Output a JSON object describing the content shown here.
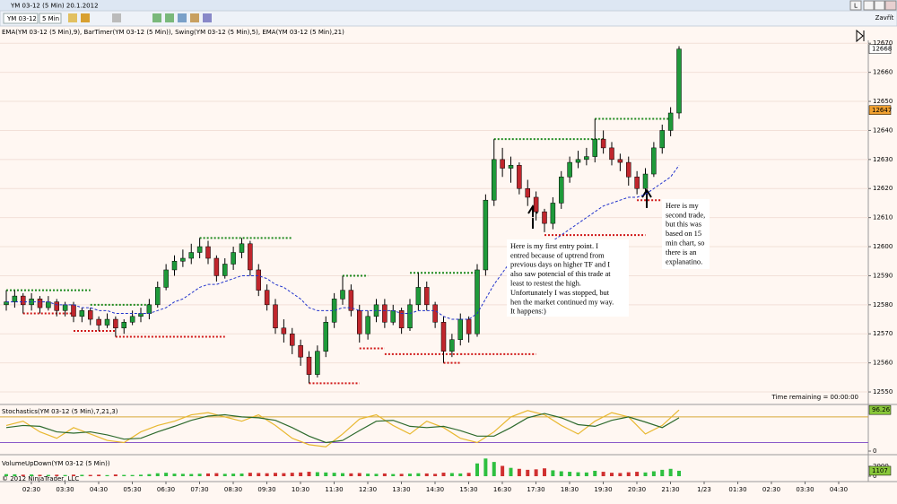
{
  "window": {
    "title": "YM 03-12 (5 Min)  20.1.2012",
    "button_l": "L",
    "close_label": "Zavřít"
  },
  "toolbar": {
    "instrument": "YM 03-12",
    "interval": "5 Min"
  },
  "indicator_legend": "EMA(YM 03-12 (5 Min),9), BarTimer(YM 03-12 (5 Min)), Swing(YM 03-12 (5 Min),5), EMA(YM 03-12 (5 Min),21)",
  "time_remaining": "Time remaining = 00:00:00",
  "copyright": "© 2012 NinjaTrader, LLC",
  "x_axis_labels": [
    "02:30",
    "03:30",
    "04:30",
    "05:30",
    "06:30",
    "07:30",
    "08:30",
    "09:30",
    "10:30",
    "11:30",
    "12:30",
    "13:30",
    "14:30",
    "15:30",
    "16:30",
    "17:30",
    "18:30",
    "19:30",
    "20:30",
    "21:30",
    "1/23",
    "01:30",
    "02:30",
    "03:30",
    "04:30"
  ],
  "annotations": [
    {
      "lines": [
        "Here is my first entry point. I",
        "entred because of uptrend from",
        "previous days on higher TF and I",
        "also saw potencial of this trade at",
        "least to restest the high.",
        "Unfortunately I was stopped, but",
        "hen the market continued my way.",
        "It happens:)"
      ]
    },
    {
      "lines": [
        "Here is my",
        "second trade,",
        "but this was",
        "based on 15",
        "min chart, so",
        "there is an",
        "explanatino."
      ]
    }
  ],
  "chart_data": [
    {
      "type": "candlestick",
      "up_color": "#1e9a3a",
      "down_color": "#c0262d",
      "categories": [
        "01:45",
        "02:00",
        "02:15",
        "02:30",
        "02:45",
        "03:00",
        "03:15",
        "03:30",
        "03:45",
        "04:00",
        "04:15",
        "04:30",
        "04:45",
        "05:00",
        "05:15",
        "05:30",
        "05:45",
        "06:00",
        "06:15",
        "06:30",
        "06:45",
        "07:00",
        "07:15",
        "07:30",
        "07:45",
        "08:00",
        "08:15",
        "08:30",
        "08:45",
        "09:00",
        "09:15",
        "09:30",
        "09:45",
        "10:00",
        "10:15",
        "10:30",
        "10:45",
        "11:00",
        "11:15",
        "11:30",
        "11:45",
        "12:00",
        "12:15",
        "12:30",
        "12:45",
        "13:00",
        "13:15",
        "13:30",
        "13:45",
        "14:00",
        "14:15",
        "14:30",
        "14:45",
        "15:00",
        "15:15",
        "15:30",
        "15:45",
        "16:00",
        "16:15",
        "16:30",
        "16:45",
        "17:00",
        "17:15",
        "17:30",
        "17:45",
        "18:00",
        "18:15",
        "18:30",
        "18:45",
        "19:00",
        "19:15",
        "19:30",
        "19:45",
        "20:00",
        "20:15",
        "20:30",
        "20:45",
        "21:00",
        "21:15",
        "21:30",
        "21:45"
      ],
      "candles": [
        [
          12580,
          12585,
          12578,
          12581
        ],
        [
          12581,
          12585,
          12579,
          12583
        ],
        [
          12583,
          12584,
          12577,
          12580
        ],
        [
          12580,
          12584,
          12578,
          12582
        ],
        [
          12582,
          12583,
          12577,
          12579
        ],
        [
          12579,
          12583,
          12578,
          12581
        ],
        [
          12581,
          12582,
          12576,
          12578
        ],
        [
          12578,
          12581,
          12576,
          12580
        ],
        [
          12580,
          12581,
          12574,
          12576
        ],
        [
          12576,
          12579,
          12574,
          12578
        ],
        [
          12578,
          12579,
          12573,
          12575
        ],
        [
          12575,
          12576,
          12571,
          12573
        ],
        [
          12573,
          12577,
          12572,
          12575
        ],
        [
          12575,
          12576,
          12569,
          12572
        ],
        [
          12572,
          12575,
          12570,
          12574
        ],
        [
          12574,
          12578,
          12573,
          12576
        ],
        [
          12576,
          12579,
          12574,
          12577
        ],
        [
          12577,
          12582,
          12575,
          12580
        ],
        [
          12580,
          12588,
          12579,
          12586
        ],
        [
          12586,
          12594,
          12585,
          12592
        ],
        [
          12592,
          12597,
          12590,
          12595
        ],
        [
          12595,
          12599,
          12593,
          12596
        ],
        [
          12596,
          12601,
          12594,
          12598
        ],
        [
          12598,
          12603,
          12596,
          12600
        ],
        [
          12600,
          12602,
          12594,
          12596
        ],
        [
          12596,
          12597,
          12588,
          12590
        ],
        [
          12590,
          12596,
          12589,
          12594
        ],
        [
          12594,
          12600,
          12592,
          12598
        ],
        [
          12598,
          12603,
          12596,
          12601
        ],
        [
          12601,
          12602,
          12590,
          12592
        ],
        [
          12592,
          12594,
          12583,
          12585
        ],
        [
          12585,
          12587,
          12578,
          12580
        ],
        [
          12580,
          12582,
          12570,
          12572
        ],
        [
          12572,
          12575,
          12567,
          12570
        ],
        [
          12570,
          12572,
          12563,
          12566
        ],
        [
          12566,
          12568,
          12559,
          12562
        ],
        [
          12562,
          12564,
          12553,
          12556
        ],
        [
          12556,
          12566,
          12555,
          12564
        ],
        [
          12564,
          12576,
          12562,
          12574
        ],
        [
          12574,
          12584,
          12572,
          12582
        ],
        [
          12582,
          12590,
          12580,
          12585
        ],
        [
          12585,
          12587,
          12576,
          12578
        ],
        [
          12578,
          12580,
          12567,
          12570
        ],
        [
          12570,
          12578,
          12568,
          12576
        ],
        [
          12576,
          12582,
          12574,
          12580
        ],
        [
          12580,
          12582,
          12572,
          12574
        ],
        [
          12574,
          12580,
          12573,
          12578
        ],
        [
          12578,
          12579,
          12570,
          12572
        ],
        [
          12572,
          12582,
          12571,
          12580
        ],
        [
          12580,
          12591,
          12578,
          12586
        ],
        [
          12586,
          12588,
          12578,
          12580
        ],
        [
          12580,
          12581,
          12572,
          12574
        ],
        [
          12574,
          12576,
          12560,
          12564
        ],
        [
          12564,
          12570,
          12562,
          12568
        ],
        [
          12568,
          12577,
          12566,
          12575
        ],
        [
          12575,
          12576,
          12567,
          12570
        ],
        [
          12570,
          12594,
          12569,
          12592
        ],
        [
          12592,
          12618,
          12590,
          12616
        ],
        [
          12616,
          12637,
          12614,
          12630
        ],
        [
          12630,
          12634,
          12624,
          12627
        ],
        [
          12627,
          12631,
          12622,
          12628
        ],
        [
          12628,
          12629,
          12618,
          12620
        ],
        [
          12620,
          12623,
          12614,
          12617
        ],
        [
          12617,
          12619,
          12609,
          12612
        ],
        [
          12612,
          12613,
          12605,
          12608
        ],
        [
          12608,
          12617,
          12606,
          12615
        ],
        [
          12615,
          12626,
          12613,
          12624
        ],
        [
          12624,
          12631,
          12622,
          12629
        ],
        [
          12629,
          12633,
          12627,
          12630
        ],
        [
          12630,
          12634,
          12628,
          12631
        ],
        [
          12631,
          12644,
          12629,
          12637
        ],
        [
          12637,
          12640,
          12632,
          12634
        ],
        [
          12634,
          12636,
          12628,
          12630
        ],
        [
          12630,
          12632,
          12626,
          12629
        ],
        [
          12629,
          12631,
          12621,
          12624
        ],
        [
          12624,
          12626,
          12618,
          12620
        ],
        [
          12620,
          12627,
          12619,
          12625
        ],
        [
          12625,
          12636,
          12624,
          12634
        ],
        [
          12634,
          12642,
          12632,
          12640
        ],
        [
          12640,
          12648,
          12638,
          12646
        ],
        [
          12646,
          12669,
          12644,
          12668
        ]
      ],
      "series": [
        {
          "color": "#2233cc",
          "values": [
            12581,
            12581,
            12581,
            12581,
            12581,
            12581,
            12580,
            12580,
            12580,
            12579,
            12579,
            12578,
            12578,
            12577,
            12577,
            12577,
            12577,
            12577,
            12578,
            12579,
            12581,
            12582,
            12584,
            12586,
            12587,
            12587,
            12588,
            12589,
            12590,
            12590,
            12590,
            12589,
            12587,
            12586,
            12584,
            12582,
            12579,
            12578,
            12578,
            12578,
            12579,
            12579,
            12578,
            12578,
            12578,
            12578,
            12578,
            12577,
            12577,
            12578,
            12578,
            12578,
            12576,
            12575,
            12575,
            12575,
            12577,
            12582,
            12587,
            12591,
            12595,
            12597,
            12599,
            12600,
            12601,
            12602,
            12604,
            12606,
            12608,
            12610,
            12612,
            12614,
            12615,
            12616,
            12617,
            12617,
            12618,
            12620,
            12622,
            12624,
            12628
          ]
        }
      ],
      "swings": [
        {
          "kind": "high",
          "value": 12585,
          "from": "01:45",
          "to": "04:15"
        },
        {
          "kind": "high",
          "value": 12580,
          "from": "04:15",
          "to": "06:00"
        },
        {
          "kind": "high",
          "value": 12603,
          "from": "07:30",
          "to": "10:15"
        },
        {
          "kind": "high",
          "value": 12590,
          "from": "11:45",
          "to": "12:30"
        },
        {
          "kind": "high",
          "value": 12591,
          "from": "13:45",
          "to": "15:45"
        },
        {
          "kind": "high",
          "value": 12637,
          "from": "16:15",
          "to": "19:30"
        },
        {
          "kind": "high",
          "value": 12644,
          "from": "19:15",
          "to": "21:30"
        },
        {
          "kind": "low",
          "value": 12577,
          "from": "02:15",
          "to": "03:45"
        },
        {
          "kind": "low",
          "value": 12571,
          "from": "03:45",
          "to": "05:00"
        },
        {
          "kind": "low",
          "value": 12569,
          "from": "05:00",
          "to": "08:15"
        },
        {
          "kind": "low",
          "value": 12553,
          "from": "10:45",
          "to": "12:15"
        },
        {
          "kind": "low",
          "value": 12565,
          "from": "12:15",
          "to": "13:00"
        },
        {
          "kind": "low",
          "value": 12563,
          "from": "13:00",
          "to": "15:15"
        },
        {
          "kind": "low",
          "value": 12560,
          "from": "14:45",
          "to": "15:15"
        },
        {
          "kind": "low",
          "value": 12563,
          "from": "15:15",
          "to": "17:30"
        },
        {
          "kind": "low",
          "value": 12604,
          "from": "17:45",
          "to": "20:45"
        },
        {
          "kind": "low",
          "value": 12616,
          "from": "20:30",
          "to": "21:45"
        }
      ],
      "swing_colors": {
        "high": "#1f8a1f",
        "low": "#d01818"
      },
      "price_markers": [
        {
          "value": 12668,
          "color": "#ffffff"
        },
        {
          "value": 12647,
          "color": "#f0a030"
        }
      ],
      "ylim": [
        12546,
        12671
      ],
      "yticks": [
        12550,
        12560,
        12570,
        12580,
        12590,
        12600,
        12610,
        12620,
        12630,
        12640,
        12650,
        12660,
        12670
      ],
      "grid": true
    },
    {
      "type": "line",
      "title": "Stochastics(YM 03-12 (5 Min),7,21,3)",
      "series": [
        {
          "color": "#e8b830",
          "values": [
            60,
            70,
            45,
            30,
            55,
            40,
            25,
            20,
            45,
            60,
            70,
            85,
            90,
            80,
            70,
            85,
            60,
            30,
            15,
            10,
            40,
            75,
            85,
            60,
            40,
            70,
            55,
            30,
            20,
            45,
            80,
            95,
            85,
            60,
            40,
            70,
            90,
            80,
            40,
            60,
            96.26
          ]
        },
        {
          "color": "#2d6a2d",
          "values": [
            55,
            60,
            58,
            45,
            42,
            45,
            38,
            28,
            30,
            45,
            58,
            72,
            82,
            85,
            80,
            78,
            72,
            55,
            35,
            20,
            25,
            48,
            70,
            72,
            58,
            55,
            58,
            48,
            35,
            35,
            55,
            78,
            88,
            78,
            62,
            58,
            72,
            80,
            68,
            55,
            78
          ]
        }
      ],
      "levels": [
        {
          "value": 80,
          "color": "#d8a838"
        },
        {
          "value": 20,
          "color": "#8a58c8"
        }
      ],
      "value_marker": {
        "value": 96.26,
        "color": "#8ac83a"
      },
      "ylim": [
        0,
        105
      ],
      "yticks": [
        0
      ]
    },
    {
      "type": "bar",
      "title": "VolumeUpDown(YM 03-12 (5 Min))",
      "values": [
        420,
        380,
        300,
        350,
        280,
        260,
        300,
        240,
        310,
        280,
        260,
        300,
        220,
        350,
        260,
        240,
        300,
        420,
        600,
        700,
        520,
        480,
        450,
        500,
        560,
        620,
        480,
        520,
        540,
        700,
        650,
        600,
        680,
        620,
        700,
        760,
        900,
        820,
        760,
        700,
        620,
        580,
        640,
        520,
        480,
        560,
        440,
        480,
        520,
        600,
        560,
        480,
        720,
        640,
        560,
        680,
        2600,
        3600,
        2900,
        2100,
        1700,
        1500,
        1300,
        1400,
        1600,
        1200,
        1000,
        900,
        800,
        760,
        1100,
        900,
        700,
        650,
        800,
        900,
        760,
        1000,
        1300,
        1500,
        1107
      ],
      "value_marker": {
        "value": 1107,
        "color": "#8ac83a"
      },
      "ylim": [
        0,
        4200
      ],
      "yticks": [
        0,
        2000
      ]
    }
  ]
}
